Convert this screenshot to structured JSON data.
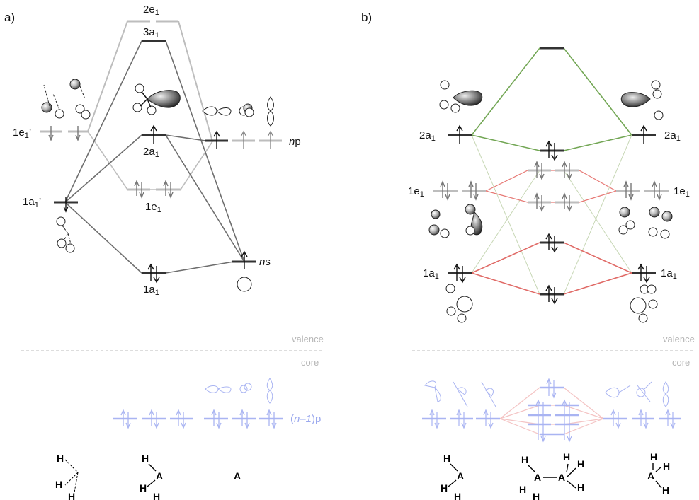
{
  "panels": {
    "a": "a)",
    "b": "b)"
  },
  "panel_a": {
    "levels": {
      "e2": "2e",
      "a3": "3a",
      "a2": "2a",
      "e1": "1e",
      "a1": "1a",
      "e1p": "1e",
      "a1p": "1a"
    },
    "subscript": "1",
    "prime": "’",
    "np": {
      "n": "n",
      "p": "p"
    },
    "ns": {
      "n": "n",
      "s": "s"
    },
    "core": {
      "open": "(",
      "n": "n",
      "minus": "–1",
      "close": ")p"
    }
  },
  "panel_b": {
    "left": {
      "a2": "2a",
      "e1": "1e",
      "a1": "1a"
    },
    "right": {
      "a2": "2a",
      "e1": "1e",
      "a1": "1a"
    },
    "subscript": "1"
  },
  "section_labels": {
    "valence": "valence",
    "core": "core"
  },
  "structures": {
    "a_fragment": [
      "H",
      "H",
      "H"
    ],
    "a_ah3": [
      "H",
      "A",
      "H",
      "H"
    ],
    "a_atom": "A",
    "b_left": [
      "H",
      "A",
      "H",
      "H"
    ],
    "b_middle": [
      "H",
      "A",
      "A",
      "H",
      "H",
      "H",
      "H",
      "H"
    ],
    "b_right": [
      "H",
      "H",
      "A",
      "H"
    ]
  },
  "colors": {
    "dark": "#3c3c3c",
    "mid": "#7a7a7a",
    "light": "#b8b8b8",
    "green": "#72a654",
    "red": "#e06a66",
    "core_blue": "#a9b4f2"
  }
}
